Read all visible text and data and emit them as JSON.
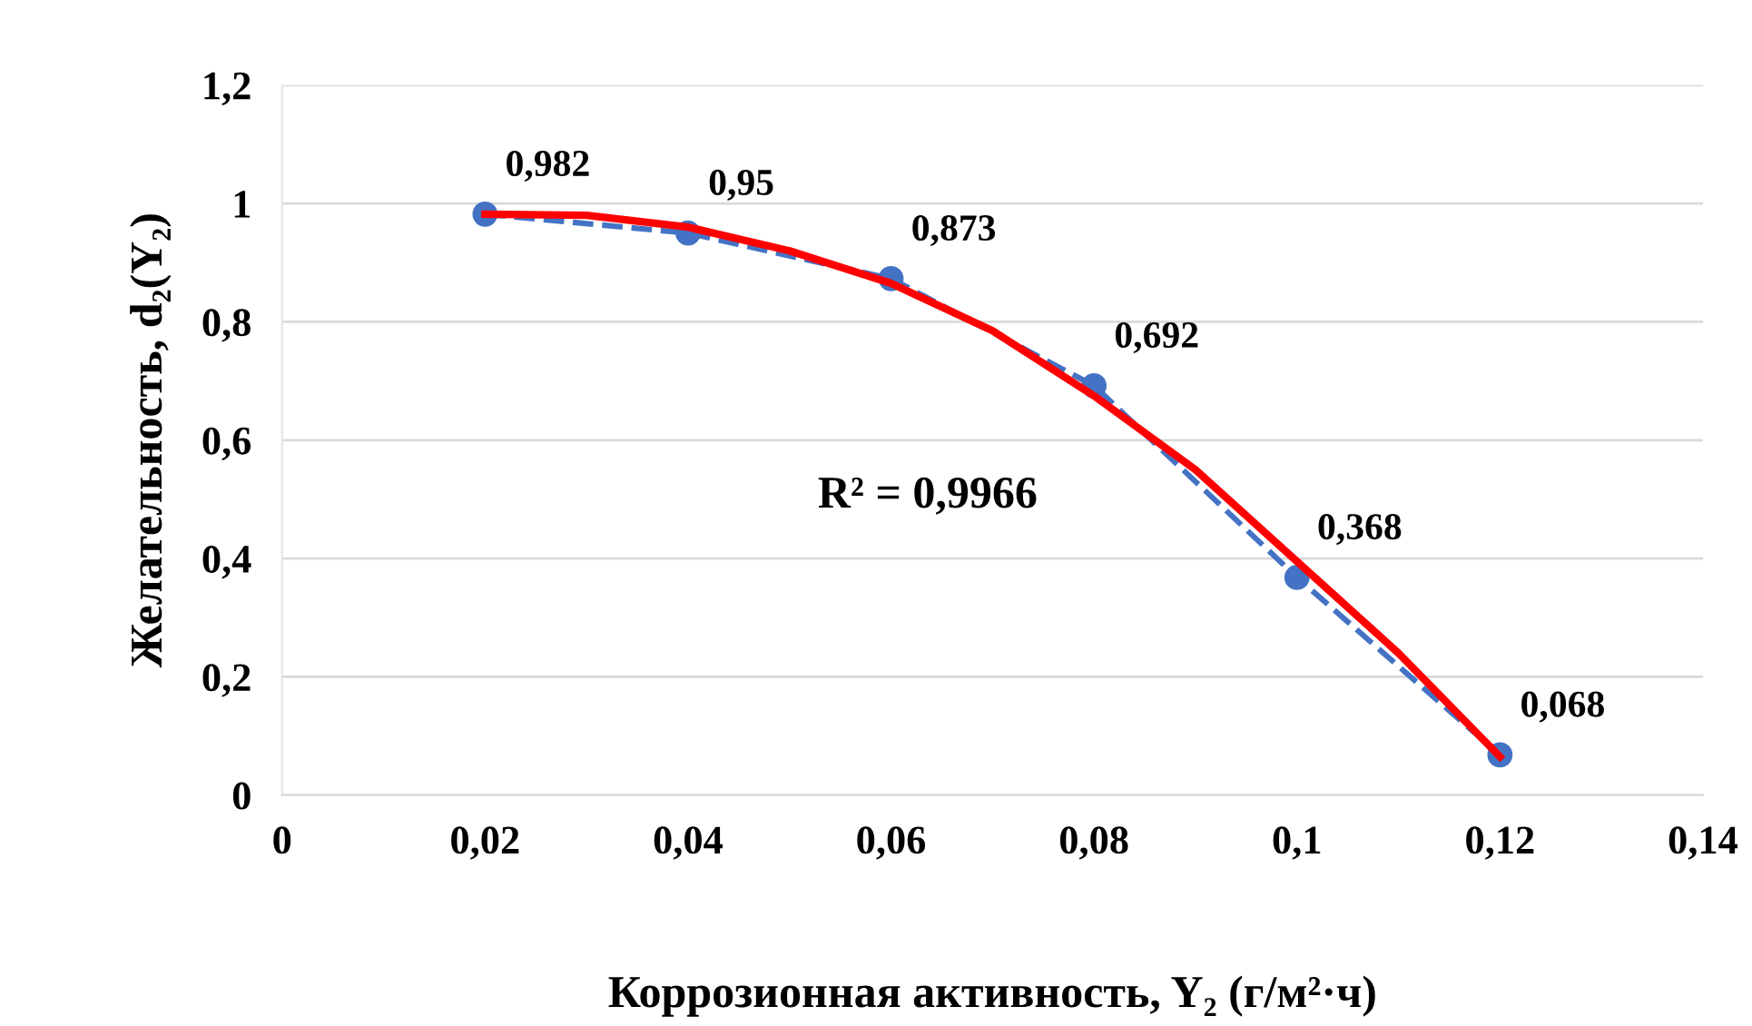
{
  "chart_data": {
    "type": "line",
    "xlabel": "Коррозионная активность, Y₂ (г/м²·ч)",
    "ylabel": "Желательность, d₂(Y₂)",
    "xlim": [
      0,
      0.14
    ],
    "xticks": [
      {
        "value": 0,
        "label": "0"
      },
      {
        "value": 0.02,
        "label": "0,02"
      },
      {
        "value": 0.04,
        "label": "0,04"
      },
      {
        "value": 0.06,
        "label": "0,06"
      },
      {
        "value": 0.08,
        "label": "0,08"
      },
      {
        "value": 0.1,
        "label": "0,1"
      },
      {
        "value": 0.12,
        "label": "0,12"
      },
      {
        "value": 0.14,
        "label": "0,14"
      }
    ],
    "ylim": [
      0,
      1.2
    ],
    "yticks": [
      {
        "value": 0,
        "label": "0"
      },
      {
        "value": 0.2,
        "label": "0,2"
      },
      {
        "value": 0.4,
        "label": "0,4"
      },
      {
        "value": 0.6,
        "label": "0,6"
      },
      {
        "value": 0.8,
        "label": "0,8"
      },
      {
        "value": 1,
        "label": "1"
      },
      {
        "value": 1.2,
        "label": "1,2"
      }
    ],
    "grid": "y",
    "legend": false,
    "series": [
      {
        "color": "#4472c4",
        "marker": "circle",
        "line_style": "dashed",
        "x": [
          0.02,
          0.04,
          0.06,
          0.08,
          0.1,
          0.12
        ],
        "values": [
          0.982,
          0.95,
          0.873,
          0.692,
          0.368,
          0.068
        ],
        "value_labels": [
          "0,982",
          "0,95",
          "0,873",
          "0,692",
          "0,368",
          "0,068"
        ]
      },
      {
        "color": "#ff0000",
        "marker": "none",
        "line_style": "solid",
        "x": [
          0.02,
          0.03,
          0.04,
          0.05,
          0.06,
          0.07,
          0.08,
          0.09,
          0.1,
          0.11,
          0.12
        ],
        "values": [
          0.982,
          0.98,
          0.96,
          0.92,
          0.865,
          0.785,
          0.675,
          0.55,
          0.395,
          0.24,
          0.065
        ]
      }
    ],
    "annotations": [
      "R² = 0,9966"
    ]
  }
}
